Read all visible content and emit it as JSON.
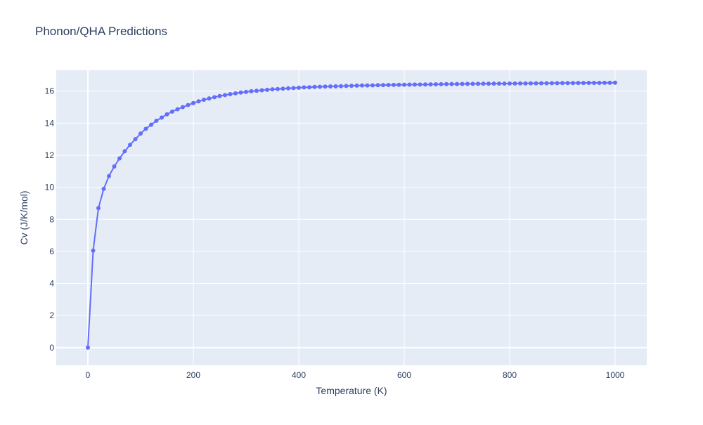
{
  "chart_data": {
    "type": "line",
    "title": "Phonon/QHA Predictions",
    "xlabel": "Temperature (K)",
    "ylabel": "Cv (J/K/mol)",
    "xlim": [
      -60,
      1060
    ],
    "ylim": [
      -1.1,
      17.3
    ],
    "xticks": [
      0,
      200,
      400,
      600,
      800,
      1000
    ],
    "yticks": [
      0,
      2,
      4,
      6,
      8,
      10,
      12,
      14,
      16
    ],
    "grid": true,
    "legend": "none",
    "series_color": "#636efa",
    "plot_bg": "#e5ecf6",
    "series": [
      {
        "x": [
          0,
          10,
          20,
          30,
          40,
          50,
          60,
          70,
          80,
          90,
          100,
          110,
          120,
          130,
          140,
          150,
          160,
          170,
          180,
          190,
          200,
          210,
          220,
          230,
          240,
          250,
          260,
          270,
          280,
          290,
          300,
          310,
          320,
          330,
          340,
          350,
          360,
          370,
          380,
          390,
          400,
          410,
          420,
          430,
          440,
          450,
          460,
          470,
          480,
          490,
          500,
          510,
          520,
          530,
          540,
          550,
          560,
          570,
          580,
          590,
          600,
          610,
          620,
          630,
          640,
          650,
          660,
          670,
          680,
          690,
          700,
          710,
          720,
          730,
          740,
          750,
          760,
          770,
          780,
          790,
          800,
          810,
          820,
          830,
          840,
          850,
          860,
          870,
          880,
          890,
          900,
          910,
          920,
          930,
          940,
          950,
          960,
          970,
          980,
          990,
          1000
        ],
        "y": [
          0,
          6.05,
          8.7,
          9.9,
          10.7,
          11.3,
          11.8,
          12.25,
          12.65,
          13.0,
          13.35,
          13.65,
          13.9,
          14.15,
          14.35,
          14.55,
          14.72,
          14.87,
          15.0,
          15.13,
          15.25,
          15.36,
          15.46,
          15.54,
          15.62,
          15.69,
          15.75,
          15.81,
          15.86,
          15.91,
          15.95,
          15.99,
          16.02,
          16.05,
          16.08,
          16.11,
          16.13,
          16.15,
          16.17,
          16.19,
          16.21,
          16.23,
          16.24,
          16.26,
          16.27,
          16.28,
          16.29,
          16.3,
          16.31,
          16.32,
          16.33,
          16.34,
          16.35,
          16.355,
          16.36,
          16.37,
          16.375,
          16.38,
          16.385,
          16.39,
          16.395,
          16.4,
          16.405,
          16.41,
          16.415,
          16.42,
          16.425,
          16.43,
          16.435,
          16.44,
          16.44,
          16.445,
          16.45,
          16.45,
          16.455,
          16.46,
          16.46,
          16.465,
          16.47,
          16.47,
          16.475,
          16.475,
          16.48,
          16.48,
          16.485,
          16.485,
          16.49,
          16.49,
          16.495,
          16.495,
          16.5,
          16.5,
          16.5,
          16.505,
          16.505,
          16.51,
          16.51,
          16.51,
          16.515,
          16.515,
          16.52
        ]
      }
    ]
  }
}
